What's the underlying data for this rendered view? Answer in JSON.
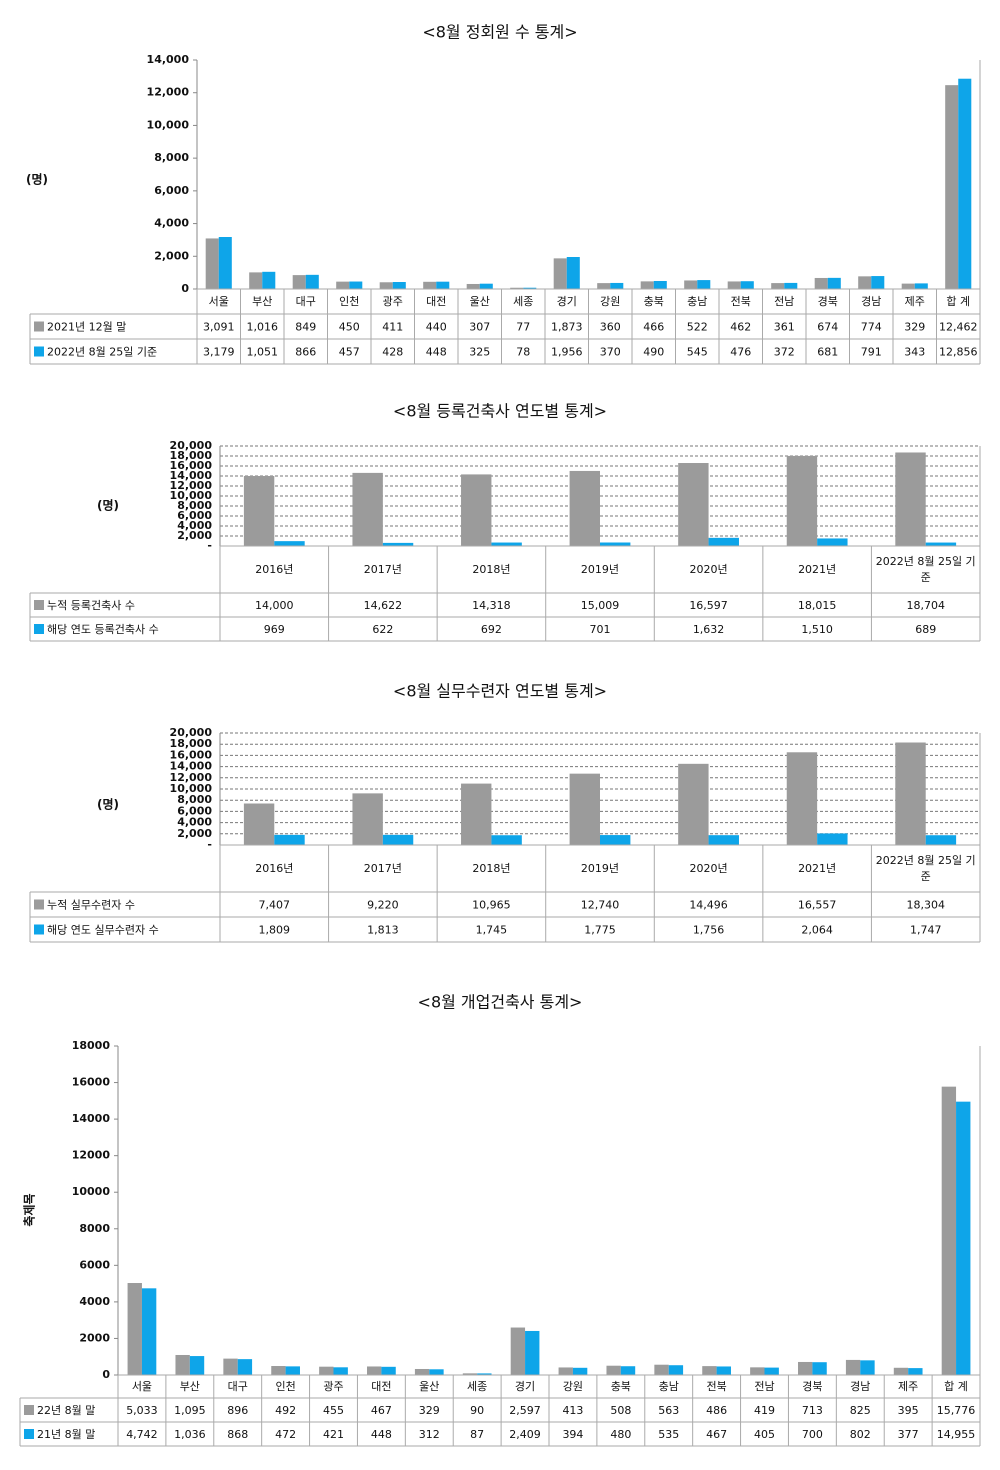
{
  "chart_data": [
    {
      "type": "bar",
      "title": "<8월 정회원 수 통계>",
      "y_label": "(명)",
      "categories": [
        "서울",
        "부산",
        "대구",
        "인천",
        "광주",
        "대전",
        "울산",
        "세종",
        "경기",
        "강원",
        "충북",
        "충남",
        "전북",
        "전남",
        "경북",
        "경남",
        "제주",
        "합 계"
      ],
      "series": [
        {
          "name": "2021년 12월 말",
          "color": "#9b9b9b",
          "values": [
            3091,
            1016,
            849,
            450,
            411,
            440,
            307,
            77,
            1873,
            360,
            466,
            522,
            462,
            361,
            674,
            774,
            329,
            12462
          ],
          "value_labels": [
            "3,091",
            "1,016",
            "849",
            "450",
            "411",
            "440",
            "307",
            "77",
            "1,873",
            "360",
            "466",
            "522",
            "462",
            "361",
            "674",
            "774",
            "329",
            "12,462"
          ]
        },
        {
          "name": "2022년 8월 25일 기준",
          "color": "#0ea5e9",
          "values": [
            3179,
            1051,
            866,
            457,
            428,
            448,
            325,
            78,
            1956,
            370,
            490,
            545,
            476,
            372,
            681,
            791,
            343,
            12856
          ],
          "value_labels": [
            "3,179",
            "1,051",
            "866",
            "457",
            "428",
            "448",
            "325",
            "78",
            "1,956",
            "370",
            "490",
            "545",
            "476",
            "372",
            "681",
            "791",
            "343",
            "12,856"
          ]
        }
      ],
      "ylim": [
        0,
        14000
      ],
      "yticks": [
        0,
        {
          "value": 2000,
          "label": "2,000"
        },
        {
          "value": 4000,
          "label": "4,000"
        },
        {
          "value": 6000,
          "label": "6,000"
        },
        {
          "value": 8000,
          "label": "8,000"
        },
        {
          "value": 10000,
          "label": "10,000"
        },
        {
          "value": 12000,
          "label": "12,000"
        },
        {
          "value": 14000,
          "label": "14,000"
        }
      ],
      "grid": false
    },
    {
      "type": "bar",
      "title": "<8월 등록건축사 연도별 통계>",
      "y_label": "(명)",
      "categories": [
        "2016년",
        "2017년",
        "2018년",
        "2019년",
        "2020년",
        "2021년",
        "2022년 8월 25일 기준"
      ],
      "series": [
        {
          "name": "누적 등록건축사 수",
          "color": "#9b9b9b",
          "values": [
            14000,
            14622,
            14318,
            15009,
            16597,
            18015,
            18704
          ],
          "value_labels": [
            "14,000",
            "14,622",
            "14,318",
            "15,009",
            "16,597",
            "18,015",
            "18,704"
          ]
        },
        {
          "name": "해당 연도 등록건축사 수",
          "color": "#0ea5e9",
          "values": [
            969,
            622,
            692,
            701,
            1632,
            1510,
            689
          ],
          "value_labels": [
            "969",
            "622",
            "692",
            "701",
            "1,632",
            "1,510",
            "689"
          ]
        }
      ],
      "ylim": [
        0,
        20000
      ],
      "yticks": [
        {
          "value": 0,
          "label": "-"
        },
        {
          "value": 2000,
          "label": "2,000"
        },
        {
          "value": 4000,
          "label": "4,000"
        },
        {
          "value": 6000,
          "label": "6,000"
        },
        {
          "value": 8000,
          "label": "8,000"
        },
        {
          "value": 10000,
          "label": "10,000"
        },
        {
          "value": 12000,
          "label": "12,000"
        },
        {
          "value": 14000,
          "label": "14,000"
        },
        {
          "value": 16000,
          "label": "16,000"
        },
        {
          "value": 18000,
          "label": "18,000"
        },
        {
          "value": 20000,
          "label": "20,000"
        }
      ],
      "grid": true
    },
    {
      "type": "bar",
      "title": "<8월 실무수련자 연도별 통계>",
      "y_label": "(명)",
      "categories": [
        "2016년",
        "2017년",
        "2018년",
        "2019년",
        "2020년",
        "2021년",
        "2022년 8월 25일 기준"
      ],
      "series": [
        {
          "name": "누적 실무수련자 수",
          "color": "#9b9b9b",
          "values": [
            7407,
            9220,
            10965,
            12740,
            14496,
            16557,
            18304
          ],
          "value_labels": [
            "7,407",
            "9,220",
            "10,965",
            "12,740",
            "14,496",
            "16,557",
            "18,304"
          ]
        },
        {
          "name": "해당 연도 실무수련자 수",
          "color": "#0ea5e9",
          "values": [
            1809,
            1813,
            1745,
            1775,
            1756,
            2064,
            1747
          ],
          "value_labels": [
            "1,809",
            "1,813",
            "1,745",
            "1,775",
            "1,756",
            "2,064",
            "1,747"
          ]
        }
      ],
      "ylim": [
        0,
        20000
      ],
      "yticks": [
        {
          "value": 0,
          "label": "-"
        },
        {
          "value": 2000,
          "label": "2,000"
        },
        {
          "value": 4000,
          "label": "4,000"
        },
        {
          "value": 6000,
          "label": "6,000"
        },
        {
          "value": 8000,
          "label": "8,000"
        },
        {
          "value": 10000,
          "label": "10,000"
        },
        {
          "value": 12000,
          "label": "12,000"
        },
        {
          "value": 14000,
          "label": "14,000"
        },
        {
          "value": 16000,
          "label": "16,000"
        },
        {
          "value": 18000,
          "label": "18,000"
        },
        {
          "value": 20000,
          "label": "20,000"
        }
      ],
      "grid": true
    },
    {
      "type": "bar",
      "title": "<8월 개업건축사 통계>",
      "y_label": "축제목",
      "categories": [
        "서울",
        "부산",
        "대구",
        "인천",
        "광주",
        "대전",
        "울산",
        "세종",
        "경기",
        "강원",
        "충북",
        "충남",
        "전북",
        "전남",
        "경북",
        "경남",
        "제주",
        "합 계"
      ],
      "series": [
        {
          "name": "22년 8월 말",
          "color": "#9b9b9b",
          "values": [
            5033,
            1095,
            896,
            492,
            455,
            467,
            329,
            90,
            2597,
            413,
            508,
            563,
            486,
            419,
            713,
            825,
            395,
            15776
          ],
          "value_labels": [
            "5,033",
            "1,095",
            "896",
            "492",
            "455",
            "467",
            "329",
            "90",
            "2,597",
            "413",
            "508",
            "563",
            "486",
            "419",
            "713",
            "825",
            "395",
            "15,776"
          ]
        },
        {
          "name": "21년 8월 말",
          "color": "#0ea5e9",
          "values": [
            4742,
            1036,
            868,
            472,
            421,
            448,
            312,
            87,
            2409,
            394,
            480,
            535,
            467,
            405,
            700,
            802,
            377,
            14955
          ],
          "value_labels": [
            "4,742",
            "1,036",
            "868",
            "472",
            "421",
            "448",
            "312",
            "87",
            "2,409",
            "394",
            "480",
            "535",
            "467",
            "405",
            "700",
            "802",
            "377",
            "14,955"
          ]
        }
      ],
      "ylim": [
        0,
        18000
      ],
      "yticks": [
        0,
        2000,
        4000,
        6000,
        8000,
        10000,
        12000,
        14000,
        16000,
        18000
      ],
      "grid": false
    }
  ]
}
